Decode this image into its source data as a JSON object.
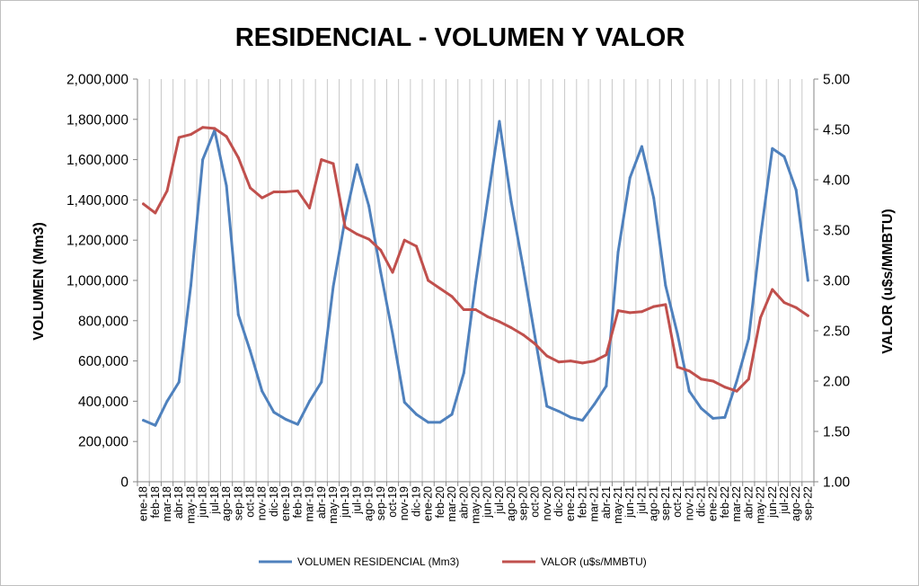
{
  "chart_data": {
    "type": "line",
    "title": "RESIDENCIAL - VOLUMEN Y VALOR",
    "ylabel": "VOLUMEN (Mm3)",
    "y2label": "VALOR (u$s/MMBTU)",
    "ylim": [
      0,
      2000000
    ],
    "y2lim": [
      1.0,
      5.0
    ],
    "yticks": [
      0,
      200000,
      400000,
      600000,
      800000,
      1000000,
      1200000,
      1400000,
      1600000,
      1800000,
      2000000
    ],
    "yticklabels": [
      "0",
      "200,000",
      "400,000",
      "600,000",
      "800,000",
      "1,000,000",
      "1,200,000",
      "1,400,000",
      "1,600,000",
      "1,800,000",
      "2,000,000"
    ],
    "y2ticks": [
      1.0,
      1.5,
      2.0,
      2.5,
      3.0,
      3.5,
      4.0,
      4.5,
      5.0
    ],
    "y2ticklabels": [
      "1.00",
      "1.50",
      "2.00",
      "2.50",
      "3.00",
      "3.50",
      "4.00",
      "4.50",
      "5.00"
    ],
    "grid": "vertical",
    "legend_position": "bottom",
    "categories": [
      "ene-18",
      "feb-18",
      "mar-18",
      "abr-18",
      "may-18",
      "jun-18",
      "jul-18",
      "ago-18",
      "sep-18",
      "oct-18",
      "nov-18",
      "dic-18",
      "ene-19",
      "feb-19",
      "mar-19",
      "abr-19",
      "may-19",
      "jun-19",
      "jul-19",
      "ago-19",
      "sep-19",
      "oct-19",
      "nov-19",
      "dic-19",
      "ene-20",
      "feb-20",
      "mar-20",
      "abr-20",
      "may-20",
      "jun-20",
      "jul-20",
      "ago-20",
      "sep-20",
      "oct-20",
      "nov-20",
      "dic-20",
      "ene-21",
      "feb-21",
      "mar-21",
      "abr-21",
      "may-21",
      "jun-21",
      "jul-21",
      "ago-21",
      "sep-21",
      "oct-21",
      "nov-21",
      "dic-21",
      "ene-22",
      "feb-22",
      "mar-22",
      "abr-22",
      "may-22",
      "jun-22",
      "jul-22",
      "ago-22",
      "sep-22"
    ],
    "series": [
      {
        "name": "VOLUMEN RESIDENCIAL (Mm3)",
        "axis": "left",
        "color": "#4f81bd",
        "values": [
          305000,
          280000,
          400000,
          495000,
          975000,
          1600000,
          1745000,
          1470000,
          830000,
          650000,
          450000,
          345000,
          310000,
          285000,
          400000,
          495000,
          970000,
          1305000,
          1575000,
          1370000,
          1040000,
          735000,
          395000,
          335000,
          295000,
          295000,
          335000,
          540000,
          990000,
          1395000,
          1790000,
          1390000,
          1065000,
          720000,
          375000,
          350000,
          320000,
          305000,
          385000,
          475000,
          1140000,
          1510000,
          1665000,
          1410000,
          975000,
          735000,
          450000,
          365000,
          315000,
          320000,
          500000,
          710000,
          1215000,
          1655000,
          1615000,
          1450000,
          1000000
        ]
      },
      {
        "name": "VALOR (u$s/MMBTU)",
        "axis": "right",
        "color": "#c0504d",
        "values": [
          3.76,
          3.67,
          3.89,
          4.42,
          4.45,
          4.52,
          4.51,
          4.43,
          4.22,
          3.92,
          3.82,
          3.88,
          3.88,
          3.89,
          3.72,
          4.2,
          4.16,
          3.53,
          3.46,
          3.41,
          3.3,
          3.08,
          3.4,
          3.34,
          3.0,
          2.92,
          2.84,
          2.71,
          2.71,
          2.64,
          2.59,
          2.53,
          2.46,
          2.37,
          2.25,
          2.19,
          2.2,
          2.18,
          2.2,
          2.26,
          2.7,
          2.68,
          2.69,
          2.74,
          2.76,
          2.14,
          2.1,
          2.02,
          2.0,
          1.94,
          1.9,
          2.02,
          2.63,
          2.91,
          2.78,
          2.73,
          2.65
        ]
      }
    ]
  }
}
